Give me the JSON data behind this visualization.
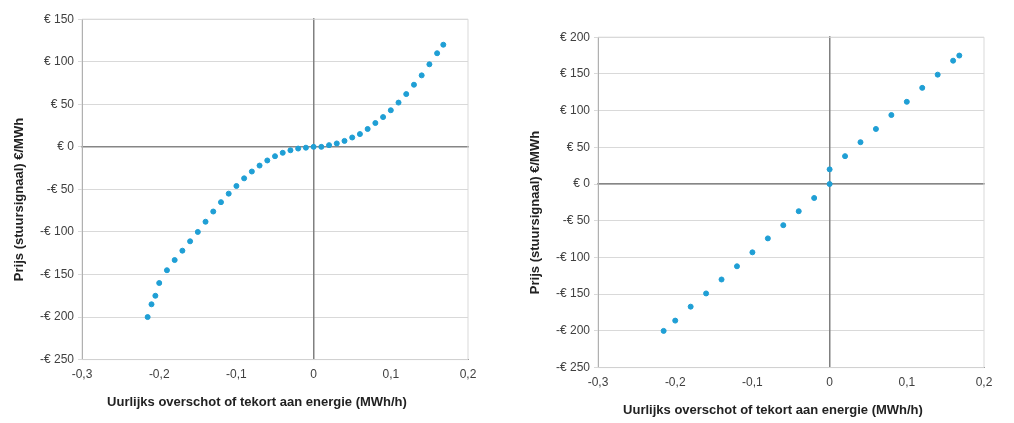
{
  "chart_data": [
    {
      "type": "scatter",
      "xlabel": "Uurlijks overschot of tekort aan energie (MWh/h)",
      "ylabel": "Prijs (stuursignaal) €/MWh",
      "x": [
        -0.215,
        -0.21,
        -0.205,
        -0.2,
        -0.19,
        -0.18,
        -0.17,
        -0.16,
        -0.15,
        -0.14,
        -0.13,
        -0.12,
        -0.11,
        -0.1,
        -0.09,
        -0.08,
        -0.07,
        -0.06,
        -0.05,
        -0.04,
        -0.03,
        -0.02,
        -0.01,
        0,
        0.01,
        0.02,
        0.03,
        0.04,
        0.05,
        0.06,
        0.07,
        0.08,
        0.09,
        0.1,
        0.11,
        0.12,
        0.13,
        0.14,
        0.15,
        0.16,
        0.168
      ],
      "series": [
        {
          "color": "#1f9fd5",
          "values": [
            -200,
            -185,
            -175,
            -160,
            -145,
            -133,
            -122,
            -111,
            -100,
            -88,
            -76,
            -65,
            -55,
            -46,
            -37,
            -29,
            -22,
            -16,
            -11,
            -7,
            -4,
            -2,
            -1,
            0,
            0,
            2,
            4,
            7,
            11,
            15,
            21,
            28,
            35,
            43,
            52,
            62,
            73,
            84,
            97,
            110,
            120
          ]
        }
      ],
      "xlim": [
        -0.3,
        0.2
      ],
      "xticks": [
        {
          "value": -0.3,
          "label": "-0,3"
        },
        {
          "value": -0.2,
          "label": "-0,2"
        },
        {
          "value": -0.1,
          "label": "-0,1"
        },
        0,
        {
          "value": 0.1,
          "label": "0,1"
        },
        {
          "value": 0.2,
          "label": "0,2"
        }
      ],
      "ylim": [
        -250,
        150
      ],
      "yticks": [
        {
          "value": -250,
          "label": "-€ 250"
        },
        {
          "value": -200,
          "label": "-€ 200"
        },
        {
          "value": -150,
          "label": "-€ 150"
        },
        {
          "value": -100,
          "label": "-€ 100"
        },
        {
          "value": -50,
          "label": "-€ 50"
        },
        {
          "value": 0,
          "label": "€ 0"
        },
        {
          "value": 50,
          "label": "€ 50"
        },
        {
          "value": 100,
          "label": "€ 100"
        },
        {
          "value": 150,
          "label": "€ 150"
        }
      ],
      "grid": "y",
      "marker": "circle",
      "legend": false
    },
    {
      "type": "scatter",
      "xlabel": "Uurlijks overschot of tekort aan energie (MWh/h)",
      "ylabel": "Prijs (stuursignaal) €/MWh",
      "x": [
        -0.215,
        -0.2,
        -0.18,
        -0.16,
        -0.14,
        -0.12,
        -0.1,
        -0.08,
        -0.06,
        -0.04,
        -0.02,
        0,
        0,
        0.02,
        0.04,
        0.06,
        0.08,
        0.1,
        0.12,
        0.14,
        0.16,
        0.168
      ],
      "series": [
        {
          "color": "#1f9fd5",
          "values": [
            -200,
            -186,
            -167,
            -149,
            -130,
            -112,
            -93,
            -74,
            -56,
            -37,
            -19,
            0,
            20,
            38,
            57,
            75,
            94,
            112,
            131,
            149,
            168,
            175
          ]
        }
      ],
      "xlim": [
        -0.3,
        0.2
      ],
      "xticks": [
        {
          "value": -0.3,
          "label": "-0,3"
        },
        {
          "value": -0.2,
          "label": "-0,2"
        },
        {
          "value": -0.1,
          "label": "-0,1"
        },
        0,
        {
          "value": 0.1,
          "label": "0,1"
        },
        {
          "value": 0.2,
          "label": "0,2"
        }
      ],
      "ylim": [
        -250,
        200
      ],
      "yticks": [
        {
          "value": -250,
          "label": "-€ 250"
        },
        {
          "value": -200,
          "label": "-€ 200"
        },
        {
          "value": -150,
          "label": "-€ 150"
        },
        {
          "value": -100,
          "label": "-€ 100"
        },
        {
          "value": -50,
          "label": "-€ 50"
        },
        {
          "value": 0,
          "label": "€ 0"
        },
        {
          "value": 50,
          "label": "€ 50"
        },
        {
          "value": 100,
          "label": "€ 100"
        },
        {
          "value": 150,
          "label": "€ 150"
        },
        {
          "value": 200,
          "label": "€ 200"
        }
      ],
      "grid": "y",
      "marker": "circle",
      "legend": false
    }
  ]
}
